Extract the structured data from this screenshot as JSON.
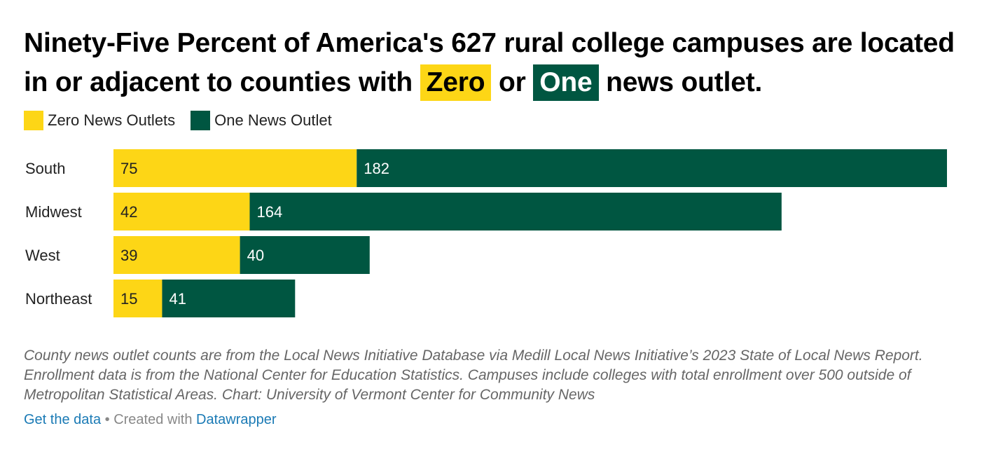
{
  "title": {
    "part1": "Ninety-Five Percent of America's 627 rural college campuses are located in or adjacent to counties with",
    "zero_highlight": "Zero",
    "middle": "or",
    "one_highlight": "One",
    "part2": "news outlet."
  },
  "colors": {
    "zero": "#fdd616",
    "one": "#005641"
  },
  "legend": {
    "zero_label": "Zero News Outlets",
    "one_label": "One News Outlet"
  },
  "chart_data": {
    "type": "bar",
    "orientation": "horizontal",
    "stacked": true,
    "categories": [
      "South",
      "Midwest",
      "West",
      "Northeast"
    ],
    "series": [
      {
        "name": "Zero News Outlets",
        "values": [
          75,
          42,
          39,
          15
        ]
      },
      {
        "name": "One News Outlet",
        "values": [
          182,
          164,
          40,
          41
        ]
      }
    ],
    "xlim": [
      0,
      257
    ],
    "title": "Ninety-Five Percent of America's 627 rural college campuses are located in or adjacent to counties with Zero or One news outlet.",
    "legend_position": "top-left"
  },
  "notes": "County news outlet counts are from the Local News Initiative Database via Medill Local News Initiative’s 2023 State of Local News Report. Enrollment data is from the National Center for Education Statistics. Campuses include colleges with total enrollment over 500 outside of Metropolitan Statistical Areas. Chart: University of Vermont Center for Community News",
  "footer": {
    "get_data": "Get the data",
    "separator": " • Created with ",
    "datawrapper": "Datawrapper"
  }
}
